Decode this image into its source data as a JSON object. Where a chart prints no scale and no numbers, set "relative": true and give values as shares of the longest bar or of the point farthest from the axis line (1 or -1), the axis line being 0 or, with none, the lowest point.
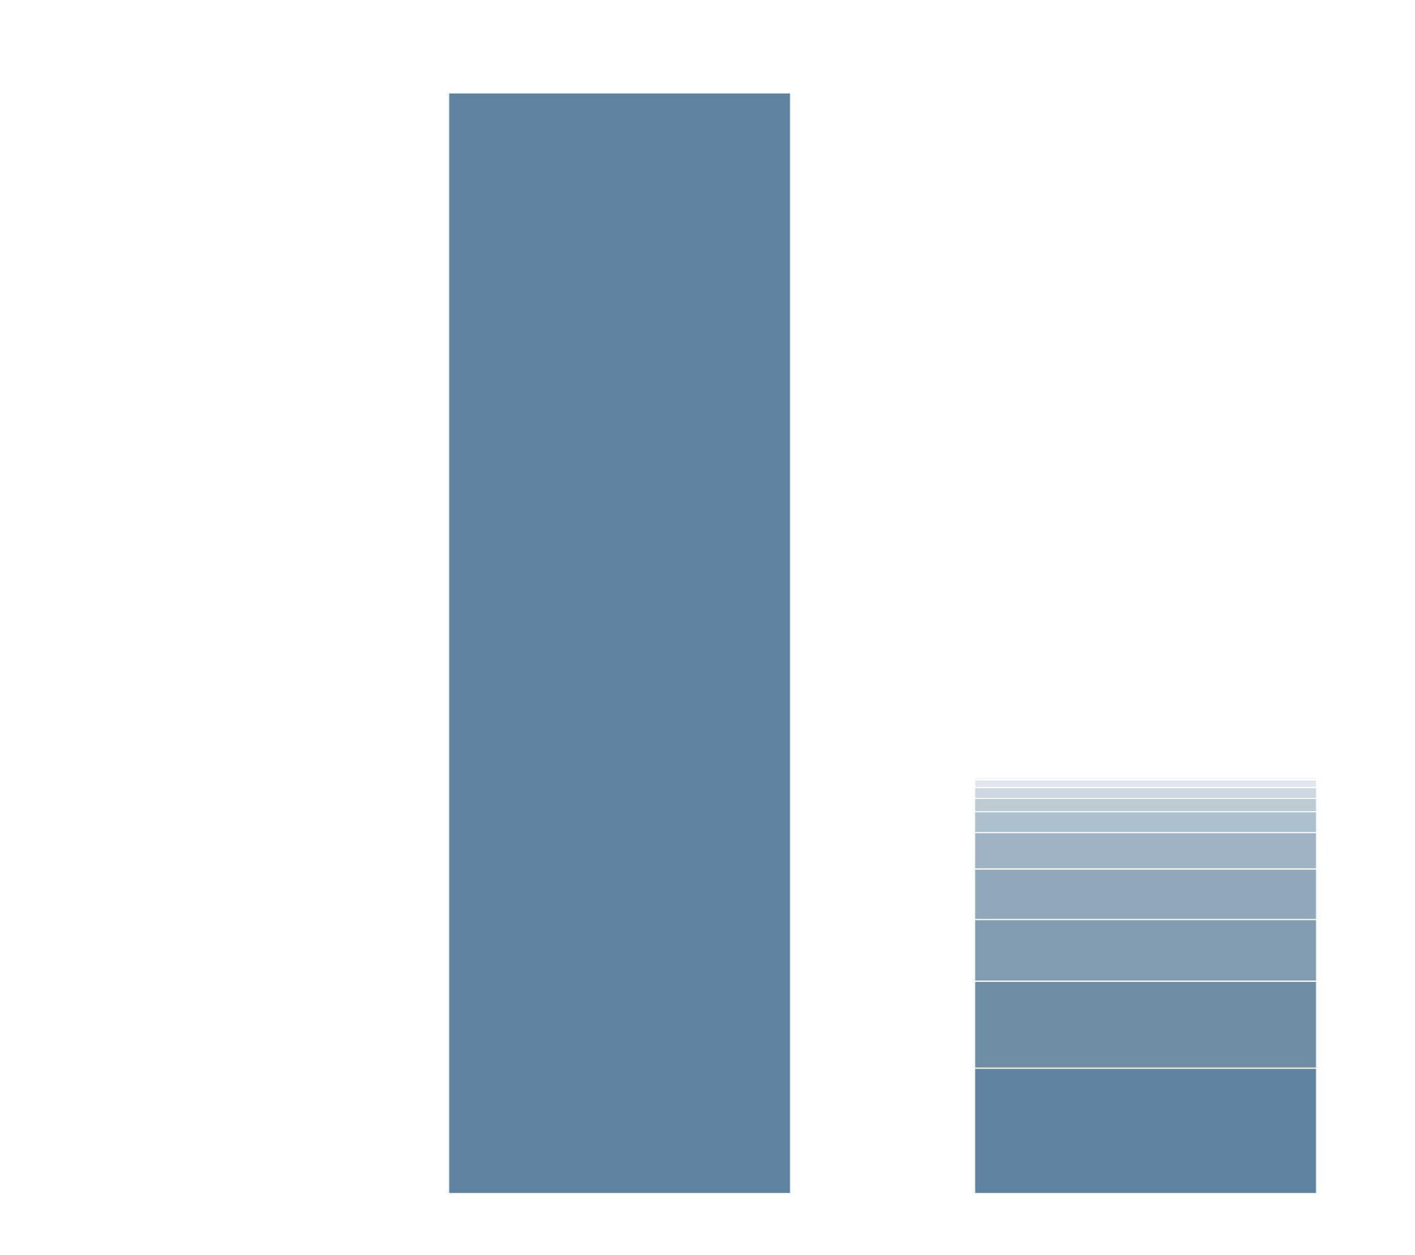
{
  "chart_data": {
    "type": "bar",
    "stacked": true,
    "relative": true,
    "categories": [
      null,
      null
    ],
    "series": [
      {
        "color": "#5f83a0",
        "values": [
          1,
          0.114
        ]
      },
      {
        "color": "#6f8ea6",
        "values": [
          null,
          0.079
        ]
      },
      {
        "color": "#819cb0",
        "values": [
          null,
          0.056
        ]
      },
      {
        "color": "#91a8bb",
        "values": [
          null,
          0.046
        ]
      },
      {
        "color": "#9fb3c4",
        "values": [
          null,
          0.033
        ]
      },
      {
        "color": "#adc0cd",
        "values": [
          null,
          0.019
        ]
      },
      {
        "color": "#bdcbd5",
        "values": [
          null,
          0.012
        ]
      },
      {
        "color": "#cdd7e0",
        "values": [
          null,
          0.01
        ]
      },
      {
        "color": "#e0e7ee",
        "values": [
          null,
          0.007
        ]
      },
      {
        "color": "#eef2f5",
        "values": [
          null,
          0.002
        ]
      }
    ]
  }
}
